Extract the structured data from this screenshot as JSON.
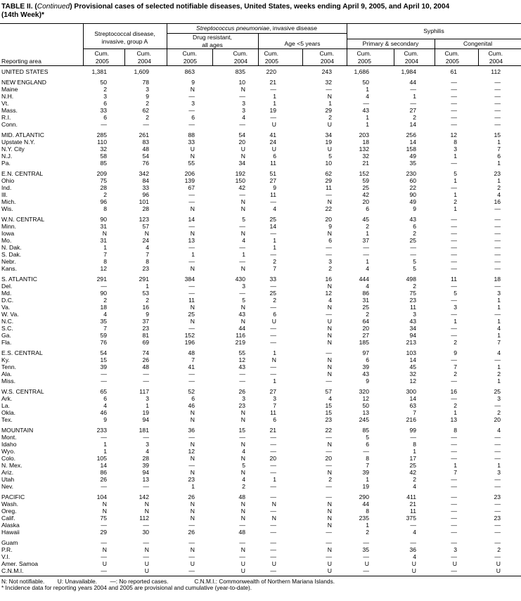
{
  "title": {
    "prefix": "TABLE II. (",
    "italic": "Continued",
    "rest": ") Provisional cases of selected notifiable diseases, United States, weeks ending April 9, 2005, and April 10, 2004",
    "line2": "(14th Week)*"
  },
  "header": {
    "reporting_area": "Reporting area",
    "strep_a_line1": "Streptococcal disease,",
    "strep_a_line2": "invasive, group A",
    "pneumo_italic": "Streptococcus pneumoniae",
    "pneumo_rest": ", invasive disease",
    "drug_line1": "Drug resistant,",
    "drug_line2": "all ages",
    "age": "Age <5 years",
    "syphilis": "Syphilis",
    "primary": "Primary & secondary",
    "congenital": "Congenital",
    "cum": "Cum.",
    "years": [
      "2005",
      "2004",
      "2005",
      "2004",
      "2005",
      "2004",
      "2005",
      "2004",
      "2005",
      "2004"
    ]
  },
  "groups": [
    [
      [
        "UNITED STATES",
        "1,381",
        "1,609",
        "863",
        "835",
        "220",
        "243",
        "1,686",
        "1,984",
        "61",
        "112"
      ]
    ],
    [
      [
        "NEW ENGLAND",
        "50",
        "78",
        "9",
        "10",
        "21",
        "32",
        "50",
        "44",
        "—",
        "—"
      ],
      [
        "Maine",
        "2",
        "3",
        "N",
        "N",
        "—",
        "—",
        "1",
        "—",
        "—",
        "—"
      ],
      [
        "N.H.",
        "3",
        "9",
        "—",
        "—",
        "1",
        "N",
        "4",
        "1",
        "—",
        "—"
      ],
      [
        "Vt.",
        "6",
        "2",
        "3",
        "3",
        "1",
        "1",
        "—",
        "—",
        "—",
        "—"
      ],
      [
        "Mass.",
        "33",
        "62",
        "—",
        "3",
        "19",
        "29",
        "43",
        "27",
        "—",
        "—"
      ],
      [
        "R.I.",
        "6",
        "2",
        "6",
        "4",
        "—",
        "2",
        "1",
        "2",
        "—",
        "—"
      ],
      [
        "Conn.",
        "—",
        "—",
        "—",
        "—",
        "U",
        "U",
        "1",
        "14",
        "—",
        "—"
      ]
    ],
    [
      [
        "MID. ATLANTIC",
        "285",
        "261",
        "88",
        "54",
        "41",
        "34",
        "203",
        "256",
        "12",
        "15"
      ],
      [
        "Upstate N.Y.",
        "110",
        "83",
        "33",
        "20",
        "24",
        "19",
        "18",
        "14",
        "8",
        "1"
      ],
      [
        "N.Y. City",
        "32",
        "48",
        "U",
        "U",
        "U",
        "U",
        "132",
        "158",
        "3",
        "7"
      ],
      [
        "N.J.",
        "58",
        "54",
        "N",
        "N",
        "6",
        "5",
        "32",
        "49",
        "1",
        "6"
      ],
      [
        "Pa.",
        "85",
        "76",
        "55",
        "34",
        "11",
        "10",
        "21",
        "35",
        "—",
        "1"
      ]
    ],
    [
      [
        "E.N. CENTRAL",
        "209",
        "342",
        "206",
        "192",
        "51",
        "62",
        "152",
        "230",
        "5",
        "23"
      ],
      [
        "Ohio",
        "75",
        "84",
        "139",
        "150",
        "27",
        "29",
        "59",
        "60",
        "1",
        "1"
      ],
      [
        "Ind.",
        "28",
        "33",
        "67",
        "42",
        "9",
        "11",
        "25",
        "22",
        "—",
        "2"
      ],
      [
        "Ill.",
        "2",
        "96",
        "—",
        "—",
        "11",
        "—",
        "42",
        "90",
        "1",
        "4"
      ],
      [
        "Mich.",
        "96",
        "101",
        "—",
        "N",
        "—",
        "N",
        "20",
        "49",
        "2",
        "16"
      ],
      [
        "Wis.",
        "8",
        "28",
        "N",
        "N",
        "4",
        "22",
        "6",
        "9",
        "1",
        "—"
      ]
    ],
    [
      [
        "W.N. CENTRAL",
        "90",
        "123",
        "14",
        "5",
        "25",
        "20",
        "45",
        "43",
        "—",
        "—"
      ],
      [
        "Minn.",
        "31",
        "57",
        "—",
        "—",
        "14",
        "9",
        "2",
        "6",
        "—",
        "—"
      ],
      [
        "Iowa",
        "N",
        "N",
        "N",
        "N",
        "—",
        "N",
        "1",
        "2",
        "—",
        "—"
      ],
      [
        "Mo.",
        "31",
        "24",
        "13",
        "4",
        "1",
        "6",
        "37",
        "25",
        "—",
        "—"
      ],
      [
        "N. Dak.",
        "1",
        "4",
        "—",
        "—",
        "1",
        "—",
        "—",
        "—",
        "—",
        "—"
      ],
      [
        "S. Dak.",
        "7",
        "7",
        "1",
        "1",
        "—",
        "—",
        "—",
        "—",
        "—",
        "—"
      ],
      [
        "Nebr.",
        "8",
        "8",
        "—",
        "—",
        "2",
        "3",
        "1",
        "5",
        "—",
        "—"
      ],
      [
        "Kans.",
        "12",
        "23",
        "N",
        "N",
        "7",
        "2",
        "4",
        "5",
        "—",
        "—"
      ]
    ],
    [
      [
        "S. ATLANTIC",
        "291",
        "291",
        "384",
        "430",
        "33",
        "16",
        "444",
        "498",
        "11",
        "18"
      ],
      [
        "Del.",
        "—",
        "1",
        "—",
        "3",
        "—",
        "N",
        "4",
        "2",
        "—",
        "—"
      ],
      [
        "Md.",
        "90",
        "53",
        "—",
        "—",
        "25",
        "12",
        "86",
        "75",
        "5",
        "3"
      ],
      [
        "D.C.",
        "2",
        "2",
        "11",
        "5",
        "2",
        "4",
        "31",
        "23",
        "—",
        "1"
      ],
      [
        "Va.",
        "18",
        "16",
        "N",
        "N",
        "—",
        "N",
        "25",
        "11",
        "3",
        "1"
      ],
      [
        "W. Va.",
        "4",
        "9",
        "25",
        "43",
        "6",
        "—",
        "2",
        "3",
        "—",
        "—"
      ],
      [
        "N.C.",
        "35",
        "37",
        "N",
        "N",
        "U",
        "U",
        "64",
        "43",
        "1",
        "1"
      ],
      [
        "S.C.",
        "7",
        "23",
        "—",
        "44",
        "—",
        "N",
        "20",
        "34",
        "—",
        "4"
      ],
      [
        "Ga.",
        "59",
        "81",
        "152",
        "116",
        "—",
        "N",
        "27",
        "94",
        "—",
        "1"
      ],
      [
        "Fla.",
        "76",
        "69",
        "196",
        "219",
        "—",
        "N",
        "185",
        "213",
        "2",
        "7"
      ]
    ],
    [
      [
        "E.S. CENTRAL",
        "54",
        "74",
        "48",
        "55",
        "1",
        "—",
        "97",
        "103",
        "9",
        "4"
      ],
      [
        "Ky.",
        "15",
        "26",
        "7",
        "12",
        "N",
        "N",
        "6",
        "14",
        "—",
        "—"
      ],
      [
        "Tenn.",
        "39",
        "48",
        "41",
        "43",
        "—",
        "N",
        "39",
        "45",
        "7",
        "1"
      ],
      [
        "Ala.",
        "—",
        "—",
        "—",
        "—",
        "—",
        "N",
        "43",
        "32",
        "2",
        "2"
      ],
      [
        "Miss.",
        "—",
        "—",
        "—",
        "—",
        "1",
        "—",
        "9",
        "12",
        "—",
        "1"
      ]
    ],
    [
      [
        "W.S. CENTRAL",
        "65",
        "117",
        "52",
        "26",
        "27",
        "57",
        "320",
        "300",
        "16",
        "25"
      ],
      [
        "Ark.",
        "6",
        "3",
        "6",
        "3",
        "3",
        "4",
        "12",
        "14",
        "—",
        "3"
      ],
      [
        "La.",
        "4",
        "1",
        "46",
        "23",
        "7",
        "15",
        "50",
        "63",
        "2",
        "—"
      ],
      [
        "Okla.",
        "46",
        "19",
        "N",
        "N",
        "11",
        "15",
        "13",
        "7",
        "1",
        "2"
      ],
      [
        "Tex.",
        "9",
        "94",
        "N",
        "N",
        "6",
        "23",
        "245",
        "216",
        "13",
        "20"
      ]
    ],
    [
      [
        "MOUNTAIN",
        "233",
        "181",
        "36",
        "15",
        "21",
        "22",
        "85",
        "99",
        "8",
        "4"
      ],
      [
        "Mont.",
        "—",
        "—",
        "—",
        "—",
        "—",
        "—",
        "5",
        "—",
        "—",
        "—"
      ],
      [
        "Idaho",
        "1",
        "3",
        "N",
        "N",
        "—",
        "N",
        "6",
        "8",
        "—",
        "—"
      ],
      [
        "Wyo.",
        "1",
        "4",
        "12",
        "4",
        "—",
        "—",
        "—",
        "1",
        "—",
        "—"
      ],
      [
        "Colo.",
        "105",
        "28",
        "N",
        "N",
        "20",
        "20",
        "8",
        "17",
        "—",
        "—"
      ],
      [
        "N. Mex.",
        "14",
        "39",
        "—",
        "5",
        "—",
        "—",
        "7",
        "25",
        "1",
        "1"
      ],
      [
        "Ariz.",
        "86",
        "94",
        "N",
        "N",
        "—",
        "N",
        "39",
        "42",
        "7",
        "3"
      ],
      [
        "Utah",
        "26",
        "13",
        "23",
        "4",
        "1",
        "2",
        "1",
        "2",
        "—",
        "—"
      ],
      [
        "Nev.",
        "—",
        "—",
        "1",
        "2",
        "—",
        "—",
        "19",
        "4",
        "—",
        "—"
      ]
    ],
    [
      [
        "PACIFIC",
        "104",
        "142",
        "26",
        "48",
        "—",
        "—",
        "290",
        "411",
        "—",
        "23"
      ],
      [
        "Wash.",
        "N",
        "N",
        "N",
        "N",
        "N",
        "N",
        "44",
        "21",
        "—",
        "—"
      ],
      [
        "Oreg.",
        "N",
        "N",
        "N",
        "N",
        "—",
        "N",
        "8",
        "11",
        "—",
        "—"
      ],
      [
        "Calif.",
        "75",
        "112",
        "N",
        "N",
        "N",
        "N",
        "235",
        "375",
        "—",
        "23"
      ],
      [
        "Alaska",
        "—",
        "—",
        "—",
        "—",
        "—",
        "N",
        "1",
        "—",
        "—",
        "—"
      ],
      [
        "Hawaii",
        "29",
        "30",
        "26",
        "48",
        "—",
        "—",
        "2",
        "4",
        "—",
        "—"
      ]
    ],
    [
      [
        "Guam",
        "—",
        "—",
        "—",
        "—",
        "—",
        "—",
        "—",
        "—",
        "—",
        "—"
      ],
      [
        "P.R.",
        "N",
        "N",
        "N",
        "N",
        "—",
        "N",
        "35",
        "36",
        "3",
        "2"
      ],
      [
        "V.I.",
        "—",
        "—",
        "—",
        "—",
        "—",
        "—",
        "—",
        "4",
        "—",
        "—"
      ],
      [
        "Amer. Samoa",
        "U",
        "U",
        "U",
        "U",
        "U",
        "U",
        "U",
        "U",
        "U",
        "U"
      ],
      [
        "C.N.M.I.",
        "—",
        "U",
        "—",
        "U",
        "—",
        "U",
        "—",
        "U",
        "—",
        "U"
      ]
    ]
  ],
  "footnotes": {
    "legend": "N: Not notifiable.        U: Unavailable.        —: No reported cases.                C.N.M.I.: Commonwealth of Northern Mariana Islands.",
    "asterisk": "* Incidence data for reporting years 2004 and 2005 are provisional and cumulative (year-to-date)."
  }
}
